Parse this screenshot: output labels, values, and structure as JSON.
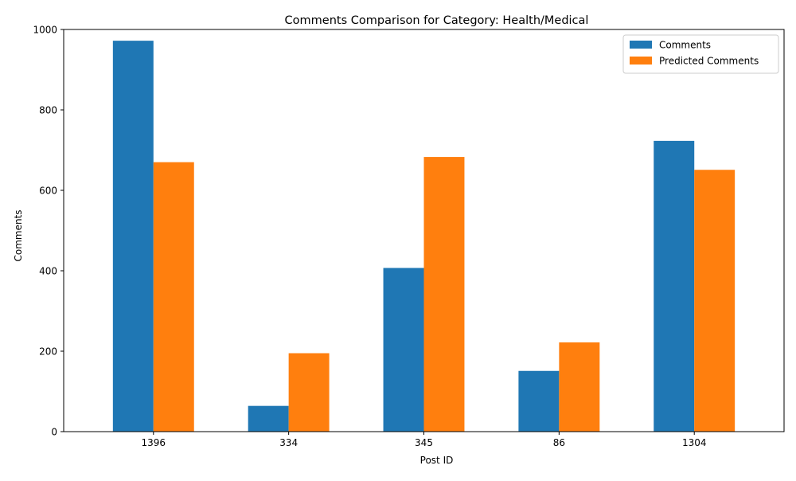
{
  "chart_data": {
    "type": "bar",
    "title": "Comments Comparison for Category: Health/Medical",
    "xlabel": "Post ID",
    "ylabel": "Comments",
    "categories": [
      "1396",
      "334",
      "345",
      "86",
      "1304"
    ],
    "series": [
      {
        "name": "Comments",
        "values": [
          972,
          64,
          407,
          151,
          723
        ],
        "color": "#1f77b4"
      },
      {
        "name": "Predicted Comments",
        "values": [
          670,
          195,
          683,
          222,
          651
        ],
        "color": "#ff7f0e"
      }
    ],
    "ylim": [
      0,
      1000
    ],
    "yticks": [
      0,
      200,
      400,
      600,
      800,
      1000
    ],
    "grid": false,
    "legend": "top-right"
  }
}
